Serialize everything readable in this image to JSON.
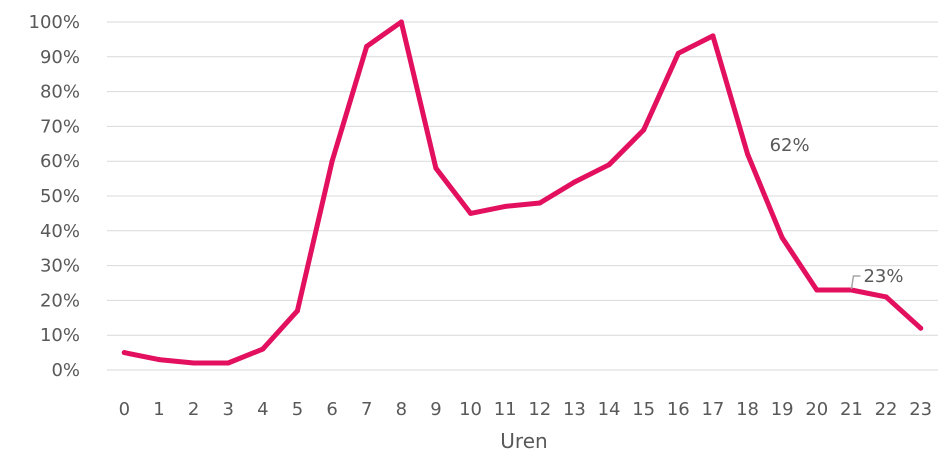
{
  "chart_data": {
    "type": "line",
    "title": "",
    "xlabel": "Uren",
    "ylabel": "",
    "categories": [
      "0",
      "1",
      "2",
      "3",
      "4",
      "5",
      "6",
      "7",
      "8",
      "9",
      "10",
      "11",
      "12",
      "13",
      "14",
      "15",
      "16",
      "17",
      "18",
      "19",
      "20",
      "21",
      "22",
      "23"
    ],
    "series": [
      {
        "values": [
          5,
          3,
          2,
          2,
          6,
          17,
          60,
          93,
          100,
          58,
          45,
          47,
          48,
          54,
          59,
          69,
          91,
          96,
          62,
          38,
          23,
          23,
          21,
          12
        ]
      }
    ],
    "ylim": [
      0,
      100
    ],
    "yticks": [
      0,
      10,
      20,
      30,
      40,
      50,
      60,
      70,
      80,
      90,
      100
    ],
    "ytick_labels": [
      "0%",
      "10%",
      "20%",
      "30%",
      "40%",
      "50%",
      "60%",
      "70%",
      "80%",
      "90%",
      "100%"
    ],
    "grid": "horizontal",
    "legend": "none",
    "annotations": [
      {
        "category": "18",
        "value": 62,
        "text": "62%"
      },
      {
        "category": "21",
        "value": 23,
        "text": "23%"
      }
    ],
    "colors": {
      "line": "#E2105E",
      "grid": "#D9D9D9",
      "text": "#595959",
      "leader": "#A6A6A6"
    }
  }
}
